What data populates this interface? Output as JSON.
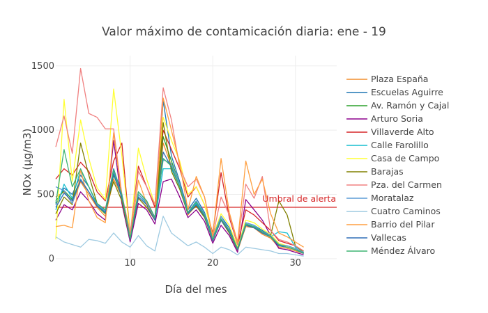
{
  "chart_data": {
    "type": "line",
    "title": "Valor máximo de contamicación diaria: ene - 19",
    "xlabel": "Día del mes",
    "ylabel": "NOx (µg/m3)",
    "xlim": [
      1,
      35
    ],
    "ylim": [
      -60,
      1580
    ],
    "xticks": [
      10,
      20,
      30
    ],
    "yticks": [
      0,
      500,
      1000,
      1500
    ],
    "grid": true,
    "legend_position": "right",
    "threshold": {
      "value": 400,
      "label": "Umbral de alerta",
      "color": "#d62728"
    },
    "x": [
      1,
      2,
      3,
      4,
      5,
      6,
      7,
      8,
      9,
      10,
      11,
      12,
      13,
      14,
      15,
      16,
      17,
      18,
      19,
      20,
      21,
      22,
      23,
      24,
      25,
      26,
      27,
      28,
      29,
      30,
      31
    ],
    "series": [
      {
        "name": "Plaza España",
        "color": "#f28e2b",
        "values": [
          480,
          520,
          430,
          600,
          500,
          400,
          330,
          620,
          480,
          150,
          480,
          420,
          300,
          900,
          720,
          560,
          340,
          420,
          330,
          140,
          300,
          200,
          60,
          250,
          240,
          190,
          160,
          90,
          80,
          60,
          40
        ]
      },
      {
        "name": "Escuelas Aguirre",
        "color": "#1f77b4",
        "values": [
          420,
          550,
          500,
          650,
          560,
          420,
          380,
          700,
          500,
          160,
          520,
          450,
          320,
          1230,
          800,
          600,
          380,
          470,
          360,
          170,
          330,
          240,
          80,
          280,
          260,
          220,
          180,
          110,
          100,
          80,
          50
        ]
      },
      {
        "name": "Av. Ramón y Cajal",
        "color": "#2ca02c",
        "values": [
          450,
          530,
          460,
          620,
          520,
          410,
          350,
          650,
          490,
          150,
          500,
          430,
          310,
          950,
          760,
          580,
          360,
          440,
          340,
          150,
          310,
          210,
          70,
          260,
          250,
          200,
          170,
          100,
          90,
          70,
          45
        ]
      },
      {
        "name": "Arturo Soria",
        "color": "#8b008b",
        "values": [
          300,
          420,
          380,
          520,
          450,
          350,
          300,
          920,
          430,
          130,
          430,
          380,
          270,
          600,
          620,
          480,
          320,
          380,
          290,
          120,
          260,
          180,
          50,
          460,
          380,
          300,
          180,
          80,
          70,
          50,
          30
        ]
      },
      {
        "name": "Villaverde Alto",
        "color": "#d62728",
        "values": [
          620,
          700,
          650,
          750,
          680,
          520,
          450,
          760,
          900,
          180,
          720,
          560,
          400,
          1000,
          850,
          700,
          480,
          560,
          420,
          200,
          670,
          320,
          110,
          380,
          340,
          280,
          220,
          140,
          120,
          100,
          60
        ]
      },
      {
        "name": "Calle Farolillo",
        "color": "#17becf",
        "values": [
          380,
          580,
          470,
          690,
          560,
          420,
          360,
          680,
          470,
          150,
          500,
          430,
          300,
          700,
          700,
          560,
          350,
          430,
          330,
          140,
          310,
          200,
          70,
          270,
          250,
          200,
          170,
          210,
          200,
          90,
          60
        ]
      },
      {
        "name": "Casa de Campo",
        "color": "#ffff33",
        "values": [
          150,
          1240,
          600,
          1080,
          780,
          550,
          460,
          1320,
          800,
          180,
          860,
          620,
          420,
          1100,
          920,
          760,
          500,
          560,
          420,
          180,
          350,
          260,
          90,
          300,
          280,
          230,
          190,
          120,
          100,
          70,
          40
        ]
      },
      {
        "name": "Barajas",
        "color": "#808000",
        "values": [
          350,
          480,
          420,
          900,
          650,
          430,
          380,
          600,
          450,
          150,
          470,
          400,
          300,
          1060,
          680,
          540,
          350,
          410,
          320,
          140,
          300,
          200,
          70,
          260,
          240,
          200,
          180,
          450,
          340,
          100,
          50
        ]
      },
      {
        "name": "Pza. del Carmen",
        "color": "#f08080",
        "values": [
          870,
          1110,
          820,
          1480,
          1130,
          1100,
          1010,
          1010,
          500,
          200,
          680,
          560,
          420,
          1330,
          1080,
          710,
          560,
          620,
          480,
          170,
          480,
          340,
          110,
          580,
          470,
          640,
          220,
          150,
          130,
          100,
          60
        ]
      },
      {
        "name": "Moratalaz",
        "color": "#5b9bd5",
        "values": [
          560,
          530,
          430,
          620,
          520,
          420,
          370,
          680,
          480,
          160,
          500,
          440,
          310,
          770,
          740,
          580,
          360,
          450,
          350,
          150,
          330,
          220,
          80,
          280,
          260,
          210,
          180,
          110,
          100,
          80,
          50
        ]
      },
      {
        "name": "Cuatro Caminos",
        "color": "#9ecae1",
        "values": [
          170,
          130,
          110,
          90,
          150,
          140,
          120,
          200,
          130,
          90,
          180,
          100,
          60,
          330,
          200,
          150,
          100,
          130,
          90,
          40,
          90,
          70,
          30,
          90,
          80,
          70,
          60,
          40,
          40,
          30,
          20
        ]
      },
      {
        "name": "Barrio del Pilar",
        "color": "#ff9f40",
        "values": [
          250,
          260,
          240,
          690,
          450,
          320,
          280,
          980,
          480,
          150,
          610,
          430,
          300,
          1250,
          1000,
          740,
          380,
          640,
          480,
          180,
          780,
          360,
          130,
          760,
          500,
          620,
          350,
          200,
          170,
          130,
          90
        ]
      },
      {
        "name": "Vallecas",
        "color": "#2f6db5",
        "values": [
          400,
          510,
          450,
          610,
          520,
          410,
          360,
          660,
          480,
          150,
          480,
          420,
          300,
          830,
          710,
          560,
          350,
          420,
          330,
          140,
          300,
          210,
          70,
          260,
          240,
          200,
          170,
          100,
          90,
          70,
          40
        ]
      },
      {
        "name": "Méndez Álvaro",
        "color": "#3cb371",
        "values": [
          430,
          850,
          560,
          700,
          560,
          430,
          380,
          690,
          500,
          160,
          520,
          450,
          320,
          780,
          720,
          560,
          360,
          440,
          340,
          150,
          310,
          220,
          80,
          270,
          250,
          210,
          170,
          110,
          90,
          70,
          45
        ]
      }
    ]
  }
}
